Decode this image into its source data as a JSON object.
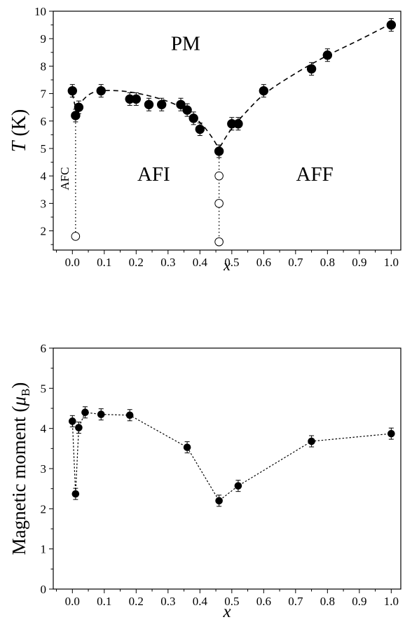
{
  "chart_data": [
    {
      "type": "scatter",
      "title": "",
      "xlabel": "x",
      "ylabel_italic": "T",
      "ylabel_unit": " (K)",
      "xlim": [
        -0.06,
        1.03
      ],
      "ylim": [
        1.3,
        10
      ],
      "xticks": [
        "0.0",
        "0.1",
        "0.2",
        "0.3",
        "0.4",
        "0.5",
        "0.6",
        "0.7",
        "0.8",
        "0.9",
        "1.0"
      ],
      "yticks": [
        "2",
        "3",
        "4",
        "5",
        "6",
        "7",
        "8",
        "9",
        "10"
      ],
      "grid": false,
      "series": [
        {
          "marker": "filled-circle",
          "error_bars": true,
          "points": [
            {
              "x": 0.0,
              "y": 7.1
            },
            {
              "x": 0.01,
              "y": 6.2
            },
            {
              "x": 0.02,
              "y": 6.5
            },
            {
              "x": 0.09,
              "y": 7.1
            },
            {
              "x": 0.18,
              "y": 6.8
            },
            {
              "x": 0.2,
              "y": 6.8
            },
            {
              "x": 0.24,
              "y": 6.6
            },
            {
              "x": 0.28,
              "y": 6.6
            },
            {
              "x": 0.34,
              "y": 6.6
            },
            {
              "x": 0.36,
              "y": 6.4
            },
            {
              "x": 0.38,
              "y": 6.1
            },
            {
              "x": 0.4,
              "y": 5.7
            },
            {
              "x": 0.46,
              "y": 4.9
            },
            {
              "x": 0.5,
              "y": 5.9
            },
            {
              "x": 0.52,
              "y": 5.9
            },
            {
              "x": 0.6,
              "y": 7.1
            },
            {
              "x": 0.75,
              "y": 7.9
            },
            {
              "x": 0.8,
              "y": 8.4
            },
            {
              "x": 1.0,
              "y": 9.5
            }
          ]
        },
        {
          "marker": "open-circle",
          "points": [
            {
              "x": 0.01,
              "y": 1.8
            },
            {
              "x": 0.46,
              "y": 4.0
            },
            {
              "x": 0.46,
              "y": 3.0
            },
            {
              "x": 0.46,
              "y": 1.6
            }
          ]
        }
      ],
      "phase_boundary_dashed": [
        {
          "x": 0.0,
          "y": 7.0
        },
        {
          "x": 0.012,
          "y": 6.35
        },
        {
          "x": 0.03,
          "y": 6.75
        },
        {
          "x": 0.06,
          "y": 7.05
        },
        {
          "x": 0.1,
          "y": 7.12
        },
        {
          "x": 0.16,
          "y": 7.1
        },
        {
          "x": 0.22,
          "y": 6.98
        },
        {
          "x": 0.28,
          "y": 6.8
        },
        {
          "x": 0.33,
          "y": 6.58
        },
        {
          "x": 0.37,
          "y": 6.28
        },
        {
          "x": 0.41,
          "y": 5.85
        },
        {
          "x": 0.44,
          "y": 5.38
        },
        {
          "x": 0.46,
          "y": 4.98
        },
        {
          "x": 0.475,
          "y": 5.3
        },
        {
          "x": 0.5,
          "y": 5.75
        },
        {
          "x": 0.55,
          "y": 6.4
        },
        {
          "x": 0.6,
          "y": 7.0
        },
        {
          "x": 0.7,
          "y": 7.75
        },
        {
          "x": 0.8,
          "y": 8.4
        },
        {
          "x": 0.9,
          "y": 8.95
        },
        {
          "x": 1.0,
          "y": 9.55
        }
      ],
      "phase_boundary_dotted": [
        [
          {
            "x": 0.01,
            "y": 6.2
          },
          {
            "x": 0.01,
            "y": 1.8
          }
        ],
        [
          {
            "x": 0.46,
            "y": 4.9
          },
          {
            "x": 0.46,
            "y": 1.6
          }
        ]
      ],
      "annotations": [
        {
          "text": "PM",
          "x": 0.355,
          "y": 8.75,
          "size": 29
        },
        {
          "text": "AFI",
          "x": 0.255,
          "y": 4.0,
          "size": 29
        },
        {
          "text": "AFF",
          "x": 0.76,
          "y": 4.0,
          "size": 29
        },
        {
          "text": "AFC",
          "x": -0.02,
          "y": 3.9,
          "size": 17,
          "rotate": true
        }
      ]
    },
    {
      "type": "line",
      "title": "",
      "xlabel": "x",
      "ylabel_main": "Magnetic moment (",
      "ylabel_mu": "μ",
      "ylabel_sub": "B",
      "ylabel_close": ")",
      "xlim": [
        -0.06,
        1.03
      ],
      "ylim": [
        0,
        6
      ],
      "xticks": [
        "0.0",
        "0.1",
        "0.2",
        "0.3",
        "0.4",
        "0.5",
        "0.6",
        "0.7",
        "0.8",
        "0.9",
        "1.0"
      ],
      "yticks": [
        "0",
        "1",
        "2",
        "3",
        "4",
        "5",
        "6"
      ],
      "grid": false,
      "line_style": "dotted",
      "series": [
        {
          "marker": "filled-circle",
          "error_bars": true,
          "points": [
            {
              "x": 0.0,
              "y": 4.18
            },
            {
              "x": 0.01,
              "y": 2.37
            },
            {
              "x": 0.02,
              "y": 4.02
            },
            {
              "x": 0.04,
              "y": 4.4
            },
            {
              "x": 0.09,
              "y": 4.35
            },
            {
              "x": 0.18,
              "y": 4.33
            },
            {
              "x": 0.36,
              "y": 3.53
            },
            {
              "x": 0.46,
              "y": 2.2
            },
            {
              "x": 0.52,
              "y": 2.57
            },
            {
              "x": 0.75,
              "y": 3.68
            },
            {
              "x": 1.0,
              "y": 3.87
            }
          ]
        }
      ]
    }
  ]
}
